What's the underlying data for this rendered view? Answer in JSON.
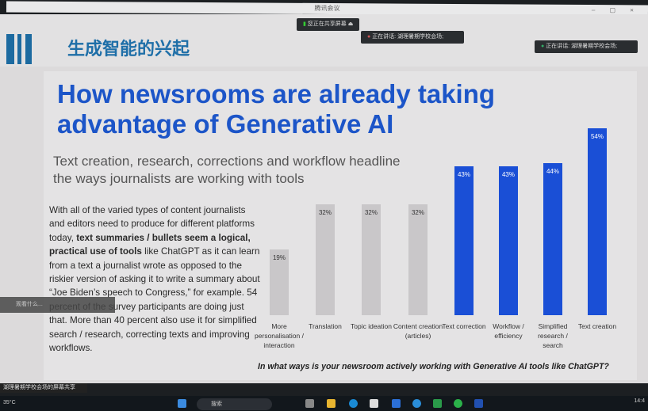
{
  "window": {
    "title": "腾讯会议",
    "controls": "– ▢ ×"
  },
  "meeting": {
    "sharing_label": "您正在共享屏幕",
    "speaking_1": "正在讲话: 湖理暑期学校会场;",
    "speaking_2": "正在讲话: 湖理暑期学校会场;",
    "toast": "观看什么...",
    "share_bar": "湖理暑期学校会场的屏幕共享"
  },
  "slide": {
    "header_title": "生成智能的兴起",
    "title": "How newsrooms are already taking advantage of Generative AI",
    "subtitle": "Text creation, research, corrections and workflow headline the ways journalists are working with tools",
    "body_1": "With all of the varied types of content journalists and editors need to produce for different platforms today, ",
    "body_bold": "text summaries / bullets seem a logical, practical use of tools",
    "body_2": " like ChatGPT as it can learn from a text a journalist wrote as opposed to the riskier version of asking it to write a summary about “Joe Biden’s speech to Congress,” for example. 54 percent of the survey participants are doing just that. More than 40 percent also use it for simplified search / research, correcting texts and improving workflows."
  },
  "chart_data": {
    "type": "bar",
    "title": "In what ways is your newsroom actively working with Generative AI tools like ChatGPT?",
    "categories": [
      "More personalisation / interaction",
      "Translation",
      "Topic ideation",
      "Content creation (articles)",
      "Text correction",
      "Workflow / efficiency",
      "Simplified research / search",
      "Text creation"
    ],
    "values": [
      19,
      32,
      32,
      32,
      43,
      43,
      44,
      54
    ],
    "labels": [
      "19%",
      "32%",
      "32%",
      "32%",
      "43%",
      "43%",
      "44%",
      "54%"
    ],
    "unit": "%",
    "colors": {
      "highlight": "#1a4fd6",
      "muted": "#c9c7c9"
    },
    "highlighted": [
      false,
      false,
      false,
      false,
      true,
      true,
      true,
      true
    ],
    "ylim": [
      0,
      60
    ],
    "grid": false,
    "legend": "none"
  },
  "taskbar": {
    "weather": "35°C",
    "search_placeholder": "搜索",
    "time": "14:4"
  }
}
